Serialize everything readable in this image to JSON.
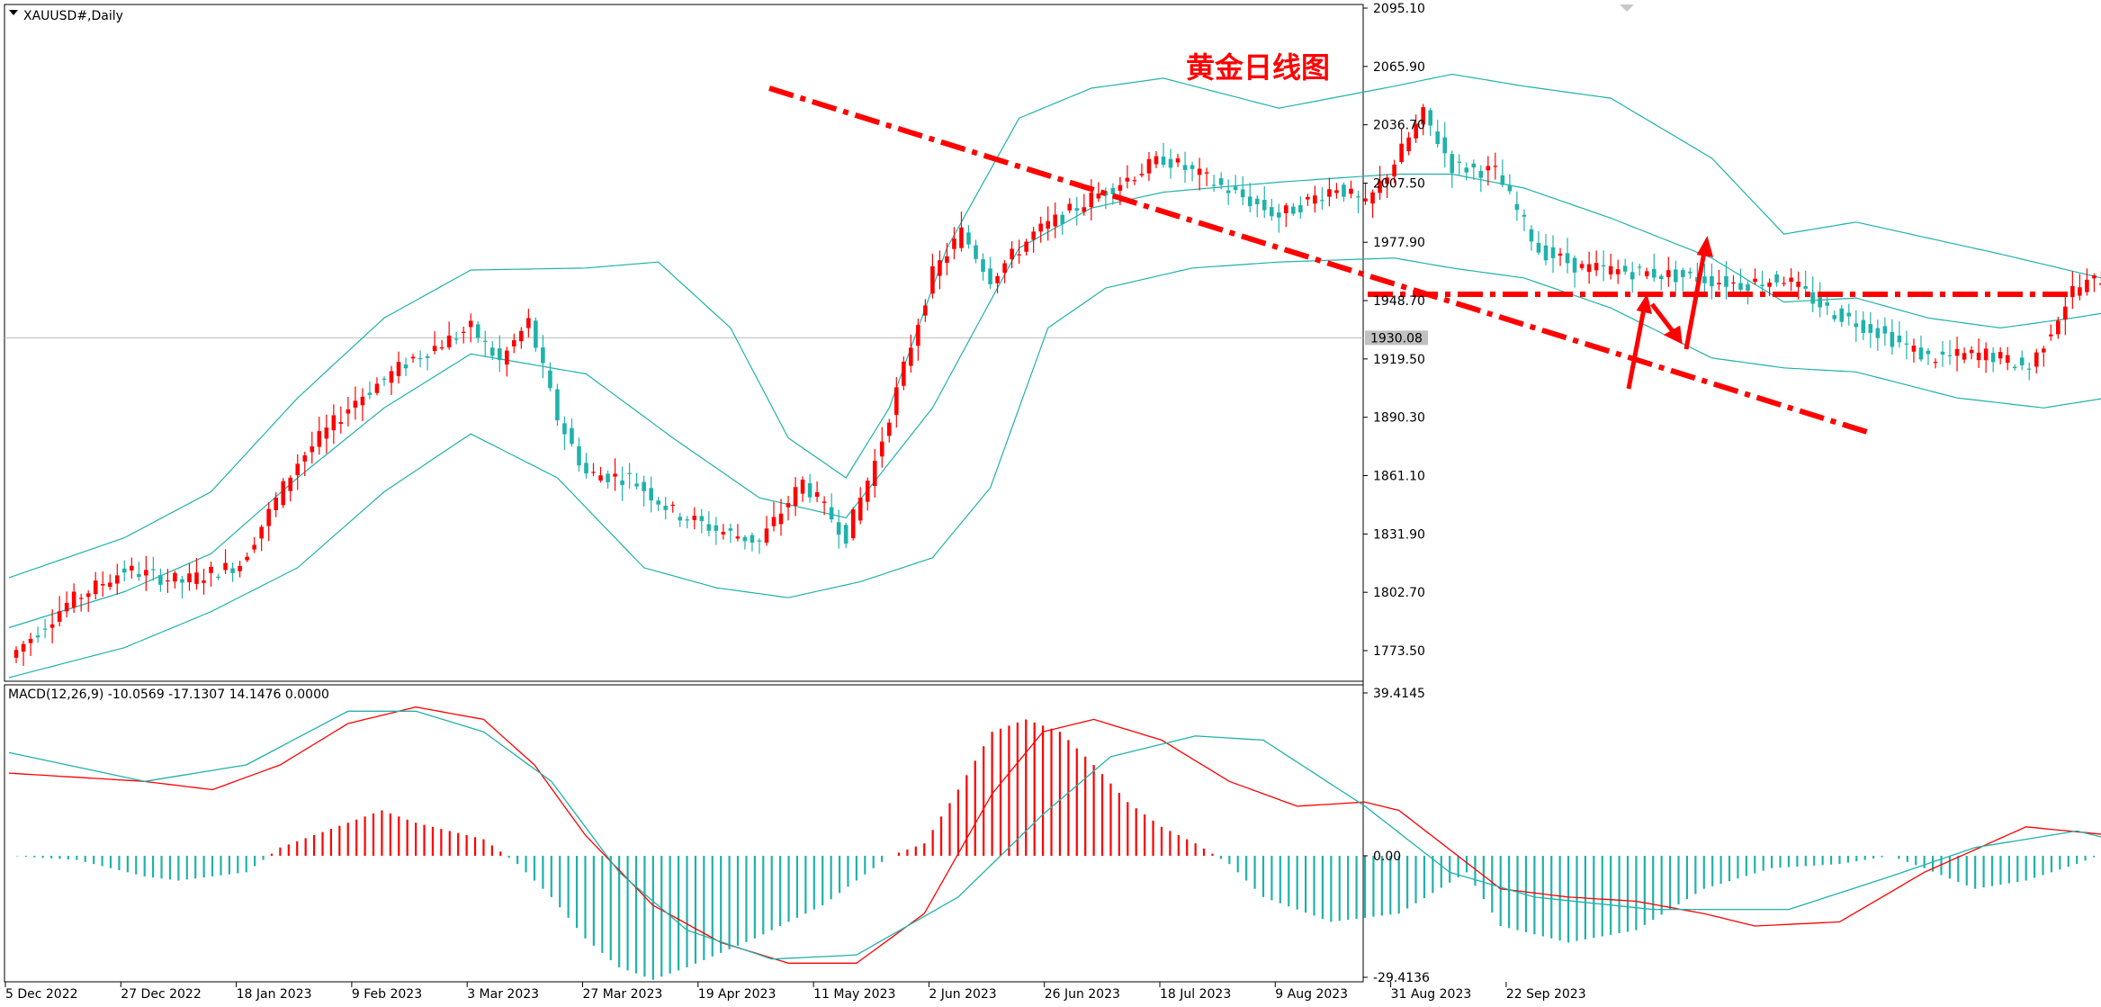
{
  "chart_data": [
    {
      "type": "candlestick",
      "symbol_label": "XAUUSD#,Daily",
      "annotation": "黄金日线图",
      "current_price": "1930.08",
      "y_ticks": [
        "2095.10",
        "2065.90",
        "2036.70",
        "2007.50",
        "1977.90",
        "1948.70",
        "1919.50",
        "1890.30",
        "1861.10",
        "1831.90",
        "1802.70",
        "1773.50"
      ],
      "y_tick_values": [
        2095.1,
        2065.9,
        2036.7,
        2007.5,
        1977.9,
        1948.7,
        1919.5,
        1890.3,
        1861.1,
        1831.9,
        1802.7,
        1773.5
      ],
      "ylim": [
        1762.5,
        2095.1
      ],
      "x_ticks": [
        "5 Dec 2022",
        "27 Dec 2022",
        "18 Jan 2023",
        "9 Feb 2023",
        "3 Mar 2023",
        "27 Mar 2023",
        "19 Apr 2023",
        "11 May 2023",
        "2 Jun 2023",
        "26 Jun 2023",
        "18 Jul 2023",
        "9 Aug 2023",
        "31 Aug 2023",
        "22 Sep 2023"
      ],
      "bars_per_tick": 16,
      "close_path": [
        [
          0,
          1770
        ],
        [
          8,
          1797
        ],
        [
          16,
          1814
        ],
        [
          24,
          1808
        ],
        [
          32,
          1817
        ],
        [
          40,
          1868
        ],
        [
          48,
          1899
        ],
        [
          56,
          1920
        ],
        [
          64,
          1935
        ],
        [
          68,
          1918
        ],
        [
          72,
          1938
        ],
        [
          76,
          1890
        ],
        [
          80,
          1862
        ],
        [
          86,
          1860
        ],
        [
          92,
          1843
        ],
        [
          98,
          1834
        ],
        [
          104,
          1828
        ],
        [
          110,
          1858
        ],
        [
          116,
          1831
        ],
        [
          120,
          1868
        ],
        [
          124,
          1915
        ],
        [
          128,
          1962
        ],
        [
          132,
          1983
        ],
        [
          136,
          1960
        ],
        [
          142,
          1982
        ],
        [
          150,
          2000
        ],
        [
          160,
          2020
        ],
        [
          168,
          2006
        ],
        [
          176,
          1991
        ],
        [
          184,
          2006
        ],
        [
          188,
          1996
        ],
        [
          192,
          2018
        ],
        [
          196,
          2042
        ],
        [
          200,
          2016
        ],
        [
          206,
          2013
        ],
        [
          212,
          1974
        ],
        [
          218,
          1965
        ],
        [
          226,
          1963
        ],
        [
          234,
          1960
        ],
        [
          240,
          1957
        ],
        [
          246,
          1960
        ],
        [
          252,
          1944
        ],
        [
          258,
          1935
        ],
        [
          266,
          1920
        ],
        [
          274,
          1922
        ],
        [
          280,
          1915
        ],
        [
          286,
          1954
        ],
        [
          290,
          1960
        ],
        [
          296,
          1965
        ],
        [
          304,
          1953
        ],
        [
          310,
          1945
        ],
        [
          316,
          1931
        ],
        [
          322,
          1917
        ],
        [
          328,
          1905
        ],
        [
          334,
          1903
        ],
        [
          340,
          1913
        ],
        [
          346,
          1921
        ],
        [
          352,
          1940
        ],
        [
          358,
          1944
        ],
        [
          364,
          1930
        ],
        [
          370,
          1923
        ],
        [
          376,
          1919
        ],
        [
          382,
          1924
        ],
        [
          386,
          1916
        ],
        [
          392,
          1928
        ],
        [
          398,
          1929
        ],
        [
          404,
          1915
        ],
        [
          408,
          1897
        ],
        [
          412,
          1878
        ],
        [
          416,
          1853
        ],
        [
          420,
          1830
        ],
        [
          424,
          1818
        ],
        [
          428,
          1822
        ],
        [
          430,
          1834
        ],
        [
          434,
          1855
        ],
        [
          438,
          1861
        ],
        [
          440,
          1871
        ],
        [
          442,
          1872
        ],
        [
          444,
          1930
        ]
      ],
      "upper_band_path": [
        [
          0,
          1810
        ],
        [
          16,
          1830
        ],
        [
          28,
          1853
        ],
        [
          40,
          1900
        ],
        [
          52,
          1940
        ],
        [
          64,
          1964
        ],
        [
          80,
          1965
        ],
        [
          90,
          1968
        ],
        [
          100,
          1935
        ],
        [
          108,
          1880
        ],
        [
          116,
          1860
        ],
        [
          122,
          1895
        ],
        [
          130,
          1975
        ],
        [
          140,
          2040
        ],
        [
          150,
          2055
        ],
        [
          160,
          2060
        ],
        [
          176,
          2045
        ],
        [
          192,
          2056
        ],
        [
          200,
          2062
        ],
        [
          210,
          2056
        ],
        [
          222,
          2050
        ],
        [
          236,
          2020
        ],
        [
          246,
          1982
        ],
        [
          256,
          1988
        ],
        [
          266,
          1980
        ],
        [
          276,
          1972
        ],
        [
          290,
          1960
        ],
        [
          304,
          1946
        ],
        [
          320,
          1958
        ],
        [
          338,
          1960
        ],
        [
          350,
          1915
        ],
        [
          362,
          1950
        ],
        [
          376,
          1945
        ],
        [
          392,
          1946
        ],
        [
          404,
          1930
        ],
        [
          416,
          1920
        ],
        [
          428,
          1960
        ],
        [
          436,
          1970
        ],
        [
          444,
          1960
        ]
      ],
      "middle_band_path": [
        [
          0,
          1785
        ],
        [
          16,
          1803
        ],
        [
          28,
          1822
        ],
        [
          40,
          1860
        ],
        [
          52,
          1895
        ],
        [
          64,
          1922
        ],
        [
          80,
          1912
        ],
        [
          92,
          1880
        ],
        [
          104,
          1850
        ],
        [
          116,
          1840
        ],
        [
          128,
          1895
        ],
        [
          140,
          1975
        ],
        [
          150,
          1995
        ],
        [
          160,
          2003
        ],
        [
          176,
          2008
        ],
        [
          192,
          2012
        ],
        [
          200,
          2012
        ],
        [
          210,
          2005
        ],
        [
          222,
          1990
        ],
        [
          236,
          1970
        ],
        [
          246,
          1948
        ],
        [
          256,
          1950
        ],
        [
          266,
          1940
        ],
        [
          276,
          1935
        ],
        [
          286,
          1940
        ],
        [
          300,
          1948
        ],
        [
          312,
          1955
        ],
        [
          324,
          1948
        ],
        [
          338,
          1935
        ],
        [
          350,
          1925
        ],
        [
          362,
          1920
        ],
        [
          376,
          1918
        ],
        [
          392,
          1922
        ],
        [
          404,
          1925
        ],
        [
          414,
          1918
        ],
        [
          428,
          1900
        ],
        [
          436,
          1883
        ],
        [
          444,
          1878
        ]
      ],
      "lower_band_path": [
        [
          0,
          1760
        ],
        [
          16,
          1775
        ],
        [
          28,
          1793
        ],
        [
          40,
          1815
        ],
        [
          52,
          1853
        ],
        [
          64,
          1882
        ],
        [
          76,
          1860
        ],
        [
          88,
          1815
        ],
        [
          98,
          1805
        ],
        [
          108,
          1800
        ],
        [
          118,
          1808
        ],
        [
          128,
          1820
        ],
        [
          136,
          1855
        ],
        [
          144,
          1935
        ],
        [
          152,
          1955
        ],
        [
          164,
          1965
        ],
        [
          176,
          1968
        ],
        [
          192,
          1970
        ],
        [
          200,
          1965
        ],
        [
          210,
          1960
        ],
        [
          222,
          1945
        ],
        [
          236,
          1920
        ],
        [
          246,
          1915
        ],
        [
          256,
          1913
        ],
        [
          270,
          1900
        ],
        [
          282,
          1895
        ],
        [
          296,
          1903
        ],
        [
          310,
          1920
        ],
        [
          324,
          1920
        ],
        [
          338,
          1900
        ],
        [
          350,
          1880
        ],
        [
          362,
          1880
        ],
        [
          374,
          1900
        ],
        [
          386,
          1910
        ],
        [
          398,
          1885
        ],
        [
          410,
          1840
        ],
        [
          424,
          1810
        ],
        [
          436,
          1797
        ],
        [
          444,
          1798
        ]
      ],
      "macd_label": "MACD(12,26,9) -10.0569 -17.1307 14.1476 0.0000",
      "macd_y_ticks": [
        "39.4145",
        "0.00",
        "-29.4136"
      ],
      "macd_ylim": [
        -29.4136,
        39.4145
      ],
      "macd_hist_path": [
        [
          0,
          0
        ],
        [
          8,
          -1
        ],
        [
          16,
          -5
        ],
        [
          20,
          -6
        ],
        [
          28,
          -4
        ],
        [
          32,
          2
        ],
        [
          40,
          8
        ],
        [
          44,
          11
        ],
        [
          48,
          8
        ],
        [
          56,
          4
        ],
        [
          60,
          -2
        ],
        [
          64,
          -10
        ],
        [
          68,
          -20
        ],
        [
          72,
          -27
        ],
        [
          76,
          -30
        ],
        [
          80,
          -27
        ],
        [
          88,
          -20
        ],
        [
          96,
          -12
        ],
        [
          100,
          -6
        ],
        [
          104,
          0
        ],
        [
          108,
          3
        ],
        [
          112,
          16
        ],
        [
          116,
          30
        ],
        [
          120,
          33
        ],
        [
          124,
          30
        ],
        [
          128,
          22
        ],
        [
          132,
          13
        ],
        [
          136,
          7
        ],
        [
          140,
          3
        ],
        [
          144,
          -2
        ],
        [
          148,
          -10
        ],
        [
          156,
          -16
        ],
        [
          164,
          -14
        ],
        [
          168,
          -9
        ],
        [
          172,
          -4
        ],
        [
          176,
          -17
        ],
        [
          184,
          -21
        ],
        [
          192,
          -18
        ],
        [
          200,
          -8
        ],
        [
          208,
          -3
        ],
        [
          216,
          -2
        ],
        [
          222,
          0
        ],
        [
          226,
          -3
        ],
        [
          232,
          -8
        ],
        [
          238,
          -6
        ],
        [
          244,
          -2
        ],
        [
          250,
          3
        ],
        [
          254,
          10
        ],
        [
          258,
          14
        ],
        [
          262,
          12
        ],
        [
          266,
          6
        ],
        [
          270,
          0
        ],
        [
          276,
          -5
        ],
        [
          284,
          -10
        ],
        [
          290,
          -12
        ],
        [
          298,
          -11
        ],
        [
          304,
          -4
        ],
        [
          308,
          5
        ],
        [
          312,
          10
        ],
        [
          316,
          11
        ],
        [
          320,
          6
        ],
        [
          324,
          1
        ],
        [
          328,
          -1
        ],
        [
          334,
          2
        ],
        [
          338,
          3
        ],
        [
          344,
          0
        ],
        [
          350,
          -10
        ],
        [
          356,
          -20
        ],
        [
          362,
          -24
        ],
        [
          366,
          -18
        ],
        [
          370,
          -10
        ],
        [
          374,
          2
        ],
        [
          378,
          16
        ]
      ],
      "macd_line_path": [
        [
          0,
          20
        ],
        [
          16,
          18
        ],
        [
          24,
          16
        ],
        [
          32,
          22
        ],
        [
          40,
          32
        ],
        [
          48,
          36
        ],
        [
          56,
          33
        ],
        [
          62,
          22
        ],
        [
          68,
          5
        ],
        [
          76,
          -12
        ],
        [
          84,
          -21
        ],
        [
          92,
          -26
        ],
        [
          100,
          -26
        ],
        [
          108,
          -14
        ],
        [
          116,
          15
        ],
        [
          122,
          30
        ],
        [
          128,
          33
        ],
        [
          136,
          28
        ],
        [
          144,
          18
        ],
        [
          152,
          12
        ],
        [
          160,
          13
        ],
        [
          164,
          11
        ],
        [
          176,
          -8
        ],
        [
          184,
          -10
        ],
        [
          192,
          -11
        ],
        [
          200,
          -14
        ],
        [
          206,
          -17
        ],
        [
          216,
          -16
        ],
        [
          226,
          -4
        ],
        [
          238,
          7
        ],
        [
          248,
          5
        ],
        [
          258,
          -5
        ],
        [
          270,
          -11
        ],
        [
          284,
          -22
        ],
        [
          294,
          -7
        ],
        [
          304,
          1
        ],
        [
          314,
          1
        ],
        [
          322,
          -3
        ],
        [
          332,
          0
        ],
        [
          338,
          1
        ],
        [
          344,
          -10
        ],
        [
          350,
          -24
        ],
        [
          356,
          -31
        ],
        [
          362,
          -28
        ],
        [
          366,
          -19
        ]
      ],
      "signal_line_path": [
        [
          0,
          25
        ],
        [
          16,
          18
        ],
        [
          28,
          22
        ],
        [
          40,
          35
        ],
        [
          48,
          35
        ],
        [
          56,
          30
        ],
        [
          64,
          18
        ],
        [
          72,
          -4
        ],
        [
          80,
          -18
        ],
        [
          90,
          -25
        ],
        [
          100,
          -24
        ],
        [
          112,
          -10
        ],
        [
          122,
          10
        ],
        [
          130,
          24
        ],
        [
          140,
          29
        ],
        [
          148,
          28
        ],
        [
          160,
          12
        ],
        [
          170,
          -4
        ],
        [
          180,
          -10
        ],
        [
          194,
          -13
        ],
        [
          210,
          -13
        ],
        [
          222,
          -5
        ],
        [
          232,
          2
        ],
        [
          244,
          6
        ],
        [
          256,
          0
        ],
        [
          266,
          -6
        ],
        [
          276,
          -14
        ],
        [
          286,
          -20
        ],
        [
          296,
          -10
        ],
        [
          306,
          -2
        ],
        [
          316,
          -1
        ],
        [
          326,
          -2
        ],
        [
          336,
          0
        ],
        [
          344,
          -8
        ],
        [
          354,
          -25
        ],
        [
          362,
          -22
        ],
        [
          366,
          -17
        ]
      ],
      "colors": {
        "up": "#ff0000",
        "down": "#20b2aa",
        "band": "#20b2aa",
        "annotation": "#ff0000",
        "macd_line": "#ff0000",
        "signal": "#20b2aa",
        "grid": "#c0c0c0",
        "frame": "#000000"
      }
    }
  ]
}
